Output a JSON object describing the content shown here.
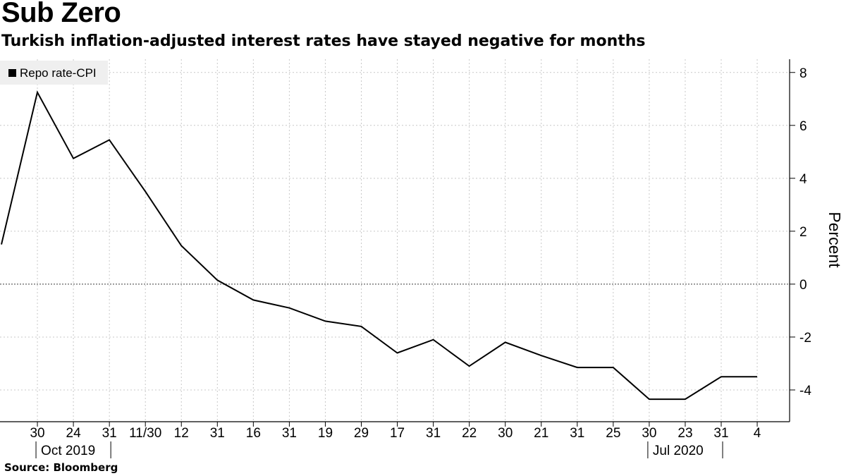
{
  "title": "Sub Zero",
  "subtitle": "Turkish inflation-adjusted interest rates have stayed negative for months",
  "source": "Source: Bloomberg",
  "chart_data": {
    "type": "line",
    "title": "Sub Zero",
    "subtitle": "Turkish inflation-adjusted interest rates have stayed negative for months",
    "ylabel": "Percent",
    "ylim": [
      -5.2,
      8.5
    ],
    "yticks": [
      -4,
      -2,
      0,
      2,
      4,
      6,
      8
    ],
    "grid": true,
    "legend_placement": "top-left",
    "x_tick_labels": [
      "30",
      "24",
      "31",
      "11/30",
      "12",
      "31",
      "16",
      "31",
      "19",
      "29",
      "17",
      "31",
      "22",
      "30",
      "21",
      "31",
      "25",
      "30",
      "23",
      "31",
      "4"
    ],
    "x_group_labels": [
      "Oct 2019",
      "Jul 2020"
    ],
    "series": [
      {
        "name": "Repo rate-CPI",
        "color": "#000000",
        "values": [
          1.5,
          7.25,
          4.75,
          5.45,
          3.5,
          1.45,
          0.15,
          -0.6,
          -0.9,
          -1.4,
          -1.6,
          -2.6,
          -2.1,
          -3.1,
          -2.2,
          -2.7,
          -3.15,
          -3.15,
          -4.35,
          -4.35,
          -3.5,
          -3.5
        ]
      }
    ]
  }
}
